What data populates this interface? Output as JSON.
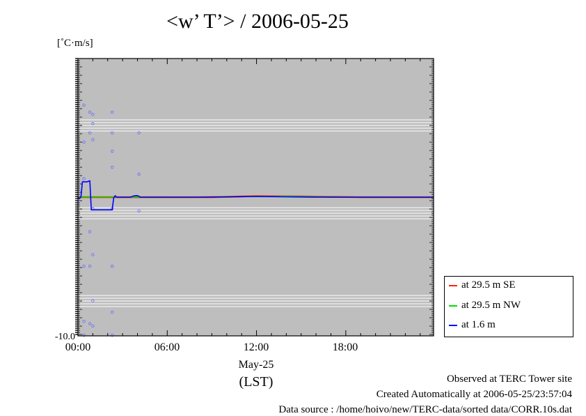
{
  "chart_data": {
    "type": "line",
    "title": "<w’ T’> / 2006-05-25",
    "ylabel": "[˚C·m/s]",
    "y_bottom_tick": "-10.0",
    "xlabel_date": "May-25",
    "xlabel_tz": "(LST)",
    "x_ticks": [
      "00:00",
      "06:00",
      "12:00",
      "18:00"
    ],
    "xlim_hours": [
      0,
      23.9
    ],
    "colors": {
      "background": "#bebebe",
      "series_red": "#ff2200",
      "series_green": "#00dd00",
      "series_blue": "#0000ff"
    },
    "series": [
      {
        "name": "at 29.5 m SE",
        "color": "#ff2200",
        "points": [
          [
            0.0,
            0.0
          ],
          [
            1.0,
            0.0
          ],
          [
            2.0,
            0.0
          ],
          [
            3.0,
            0.0
          ],
          [
            4.0,
            0.0
          ],
          [
            5.0,
            0.0
          ],
          [
            6.0,
            0.0
          ],
          [
            7.0,
            0.0
          ],
          [
            8.0,
            0.0
          ],
          [
            9.0,
            0.0
          ],
          [
            10.0,
            0.2
          ],
          [
            11.0,
            0.4
          ],
          [
            12.0,
            0.6
          ],
          [
            13.0,
            0.5
          ],
          [
            14.0,
            0.5
          ],
          [
            15.0,
            0.45
          ],
          [
            16.0,
            0.3
          ],
          [
            17.0,
            0.2
          ],
          [
            18.0,
            0.1
          ],
          [
            19.0,
            0.0
          ],
          [
            20.0,
            0.0
          ],
          [
            21.0,
            0.0
          ],
          [
            22.0,
            0.0
          ],
          [
            23.0,
            0.0
          ],
          [
            23.9,
            0.0
          ]
        ]
      },
      {
        "name": "at 29.5 m NW",
        "color": "#00dd00",
        "points": [
          [
            0.0,
            -0.1
          ],
          [
            1.0,
            0.0
          ],
          [
            2.0,
            0.0
          ],
          [
            3.0,
            0.0
          ],
          [
            4.0,
            0.1
          ],
          [
            5.0,
            -0.2
          ],
          [
            6.0,
            0.0
          ],
          [
            7.0,
            0.0
          ],
          [
            8.0,
            0.0
          ],
          [
            9.0,
            0.1
          ],
          [
            10.0,
            0.3
          ],
          [
            11.0,
            0.3
          ],
          [
            12.0,
            0.3
          ],
          [
            13.0,
            0.4
          ],
          [
            14.0,
            0.5
          ],
          [
            15.0,
            0.4
          ],
          [
            16.0,
            0.2
          ],
          [
            17.0,
            0.1
          ],
          [
            18.0,
            0.0
          ],
          [
            19.0,
            0.0
          ],
          [
            20.0,
            -0.1
          ],
          [
            21.0,
            0.0
          ],
          [
            22.0,
            0.0
          ],
          [
            23.0,
            0.0
          ],
          [
            23.9,
            0.0
          ]
        ]
      },
      {
        "name": "at 1.6 m",
        "color": "#0000ff",
        "points": [
          [
            0.0,
            0.0
          ],
          [
            0.1,
            -0.8
          ],
          [
            0.2,
            0.2
          ],
          [
            0.3,
            8.5
          ],
          [
            0.6,
            8.5
          ],
          [
            0.8,
            9.0
          ],
          [
            0.9,
            -7.0
          ],
          [
            1.1,
            -7.0
          ],
          [
            2.3,
            -7.0
          ],
          [
            2.4,
            -0.5
          ],
          [
            2.5,
            0.8
          ],
          [
            2.6,
            0.0
          ],
          [
            3.5,
            0.0
          ],
          [
            3.8,
            0.8
          ],
          [
            4.0,
            0.9
          ],
          [
            4.2,
            0.0
          ],
          [
            5.0,
            0.0
          ],
          [
            6.0,
            0.0
          ],
          [
            7.0,
            0.0
          ],
          [
            8.0,
            0.0
          ],
          [
            9.0,
            0.1
          ],
          [
            10.0,
            0.2
          ],
          [
            11.0,
            0.3
          ],
          [
            12.0,
            0.4
          ],
          [
            13.0,
            0.3
          ],
          [
            14.0,
            0.2
          ],
          [
            15.0,
            0.1
          ],
          [
            16.0,
            0.0
          ],
          [
            17.0,
            0.0
          ],
          [
            18.0,
            0.0
          ],
          [
            19.0,
            0.0
          ],
          [
            20.0,
            0.0
          ],
          [
            21.0,
            0.0
          ],
          [
            22.0,
            0.0
          ],
          [
            23.0,
            0.0
          ],
          [
            23.9,
            0.0
          ]
        ]
      }
    ],
    "outliers": [
      [
        0.4,
        40
      ],
      [
        0.4,
        24
      ],
      [
        0.4,
        8
      ],
      [
        0.4,
        -30
      ],
      [
        0.4,
        -54
      ],
      [
        0.4,
        -60
      ],
      [
        0.8,
        37
      ],
      [
        0.8,
        28
      ],
      [
        0.8,
        -15
      ],
      [
        0.8,
        -30
      ],
      [
        0.8,
        -55
      ],
      [
        1.0,
        36
      ],
      [
        1.0,
        32
      ],
      [
        1.0,
        25
      ],
      [
        1.0,
        -5
      ],
      [
        1.0,
        -25
      ],
      [
        1.0,
        -45
      ],
      [
        1.0,
        -56
      ],
      [
        2.3,
        37
      ],
      [
        2.3,
        28
      ],
      [
        2.3,
        20
      ],
      [
        2.3,
        13
      ],
      [
        2.3,
        -5
      ],
      [
        2.3,
        -30
      ],
      [
        2.3,
        -50
      ],
      [
        2.3,
        -60
      ],
      [
        4.1,
        28
      ],
      [
        4.1,
        10
      ],
      [
        4.1,
        -6
      ]
    ],
    "legend": [
      {
        "label": "at 29.5 m SE",
        "color": "#ff2200"
      },
      {
        "label": "at 29.5 m NW",
        "color": "#00dd00"
      },
      {
        "label": "at 1.6 m",
        "color": "#0000ff"
      }
    ],
    "legend_position": "bottom-right outside"
  },
  "footer": {
    "line1": "Observed at TERC Tower site",
    "line2": "Created Automatically at 2006-05-25/23:57:04",
    "line3": "Data source : /home/hoivo/new/TERC-data/sorted  data/CORR.10s.dat"
  }
}
